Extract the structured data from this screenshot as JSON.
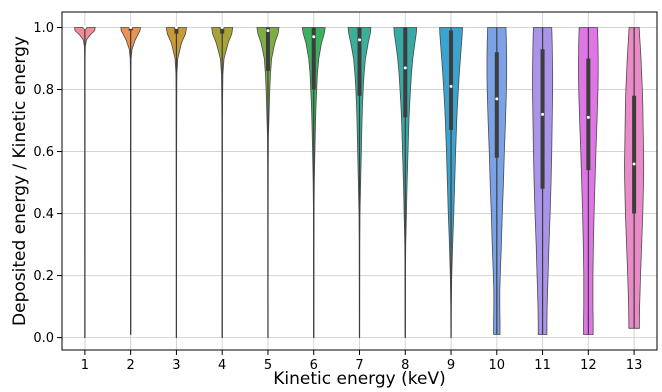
{
  "chart_data": {
    "type": "violin",
    "title": "",
    "xlabel": "Kinetic energy (keV)",
    "ylabel": "Deposited energy / Kinetic energy",
    "ylim": [
      -0.04,
      1.05
    ],
    "yticks": [
      "0.0",
      "0.2",
      "0.4",
      "0.6",
      "0.8",
      "1.0"
    ],
    "grid": true,
    "categories": [
      "1",
      "2",
      "3",
      "4",
      "5",
      "6",
      "7",
      "8",
      "9",
      "10",
      "11",
      "12",
      "13"
    ],
    "series": [
      {
        "category": "1",
        "color": "#f08b97",
        "min": 0.0,
        "q1": 0.995,
        "median": 1.0,
        "q3": 1.0,
        "max": 1.0,
        "profile": [
          [
            1.0,
            0.45
          ],
          [
            0.99,
            0.43
          ],
          [
            0.975,
            0.22
          ],
          [
            0.96,
            0.07
          ],
          [
            0.94,
            0.02
          ],
          [
            0.9,
            0.01
          ],
          [
            0.7,
            0.006
          ],
          [
            0.0,
            0.005
          ]
        ]
      },
      {
        "category": "2",
        "color": "#ea9352",
        "min": 0.01,
        "q1": 0.99,
        "median": 1.0,
        "q3": 1.0,
        "max": 1.0,
        "profile": [
          [
            1.0,
            0.43
          ],
          [
            0.99,
            0.41
          ],
          [
            0.96,
            0.2
          ],
          [
            0.93,
            0.06
          ],
          [
            0.9,
            0.02
          ],
          [
            0.85,
            0.01
          ],
          [
            0.6,
            0.006
          ],
          [
            0.01,
            0.005
          ]
        ]
      },
      {
        "category": "3",
        "color": "#c99a35",
        "min": 0.0,
        "q1": 0.98,
        "median": 1.0,
        "q3": 1.0,
        "max": 1.0,
        "profile": [
          [
            1.0,
            0.44
          ],
          [
            0.98,
            0.4
          ],
          [
            0.95,
            0.22
          ],
          [
            0.9,
            0.06
          ],
          [
            0.85,
            0.02
          ],
          [
            0.8,
            0.015
          ],
          [
            0.65,
            0.01
          ],
          [
            0.4,
            0.006
          ],
          [
            0.0,
            0.005
          ]
        ]
      },
      {
        "category": "4",
        "color": "#a8a238",
        "min": 0.0,
        "q1": 0.98,
        "median": 1.0,
        "q3": 1.0,
        "max": 1.0,
        "profile": [
          [
            1.0,
            0.46
          ],
          [
            0.98,
            0.42
          ],
          [
            0.95,
            0.26
          ],
          [
            0.9,
            0.08
          ],
          [
            0.85,
            0.03
          ],
          [
            0.78,
            0.02
          ],
          [
            0.7,
            0.012
          ],
          [
            0.4,
            0.006
          ],
          [
            0.0,
            0.005
          ]
        ]
      },
      {
        "category": "5",
        "color": "#7cae45",
        "min": 0.0,
        "q1": 0.86,
        "median": 0.99,
        "q3": 1.0,
        "max": 1.0,
        "profile": [
          [
            1.0,
            0.48
          ],
          [
            0.98,
            0.44
          ],
          [
            0.95,
            0.3
          ],
          [
            0.9,
            0.16
          ],
          [
            0.85,
            0.11
          ],
          [
            0.8,
            0.08
          ],
          [
            0.75,
            0.06
          ],
          [
            0.7,
            0.04
          ],
          [
            0.65,
            0.02
          ],
          [
            0.55,
            0.012
          ],
          [
            0.4,
            0.008
          ],
          [
            0.0,
            0.005
          ]
        ]
      },
      {
        "category": "6",
        "color": "#3cb060",
        "min": 0.0,
        "q1": 0.8,
        "median": 0.97,
        "q3": 1.0,
        "max": 1.0,
        "profile": [
          [
            1.0,
            0.5
          ],
          [
            0.98,
            0.46
          ],
          [
            0.95,
            0.34
          ],
          [
            0.9,
            0.22
          ],
          [
            0.85,
            0.16
          ],
          [
            0.8,
            0.13
          ],
          [
            0.75,
            0.1
          ],
          [
            0.7,
            0.08
          ],
          [
            0.6,
            0.05
          ],
          [
            0.5,
            0.025
          ],
          [
            0.4,
            0.012
          ],
          [
            0.2,
            0.006
          ],
          [
            0.0,
            0.005
          ]
        ]
      },
      {
        "category": "7",
        "color": "#3ab09a",
        "min": 0.0,
        "q1": 0.78,
        "median": 0.96,
        "q3": 1.0,
        "max": 1.0,
        "profile": [
          [
            1.0,
            0.5
          ],
          [
            0.98,
            0.47
          ],
          [
            0.95,
            0.38
          ],
          [
            0.9,
            0.26
          ],
          [
            0.85,
            0.2
          ],
          [
            0.8,
            0.16
          ],
          [
            0.75,
            0.13
          ],
          [
            0.7,
            0.11
          ],
          [
            0.6,
            0.08
          ],
          [
            0.5,
            0.05
          ],
          [
            0.4,
            0.02
          ],
          [
            0.3,
            0.01
          ],
          [
            0.0,
            0.005
          ]
        ]
      },
      {
        "category": "8",
        "color": "#37aaa8",
        "min": 0.0,
        "q1": 0.71,
        "median": 0.87,
        "q3": 1.0,
        "max": 1.0,
        "profile": [
          [
            1.0,
            0.5
          ],
          [
            0.98,
            0.48
          ],
          [
            0.95,
            0.42
          ],
          [
            0.9,
            0.33
          ],
          [
            0.85,
            0.27
          ],
          [
            0.8,
            0.23
          ],
          [
            0.75,
            0.19
          ],
          [
            0.7,
            0.16
          ],
          [
            0.6,
            0.12
          ],
          [
            0.5,
            0.08
          ],
          [
            0.4,
            0.05
          ],
          [
            0.3,
            0.02
          ],
          [
            0.2,
            0.01
          ],
          [
            0.0,
            0.005
          ]
        ]
      },
      {
        "category": "9",
        "color": "#3aa3cf",
        "min": 0.0,
        "q1": 0.67,
        "median": 0.81,
        "q3": 0.99,
        "max": 1.0,
        "profile": [
          [
            1.0,
            0.5
          ],
          [
            0.98,
            0.49
          ],
          [
            0.95,
            0.46
          ],
          [
            0.9,
            0.41
          ],
          [
            0.85,
            0.36
          ],
          [
            0.8,
            0.32
          ],
          [
            0.75,
            0.28
          ],
          [
            0.7,
            0.25
          ],
          [
            0.6,
            0.2
          ],
          [
            0.5,
            0.16
          ],
          [
            0.4,
            0.12
          ],
          [
            0.3,
            0.07
          ],
          [
            0.2,
            0.03
          ],
          [
            0.1,
            0.012
          ],
          [
            0.0,
            0.006
          ]
        ]
      },
      {
        "category": "10",
        "color": "#7ba2e6",
        "min": 0.01,
        "q1": 0.58,
        "median": 0.77,
        "q3": 0.92,
        "max": 1.0,
        "profile": [
          [
            1.0,
            0.4
          ],
          [
            0.95,
            0.42
          ],
          [
            0.9,
            0.43
          ],
          [
            0.85,
            0.43
          ],
          [
            0.8,
            0.42
          ],
          [
            0.75,
            0.4
          ],
          [
            0.7,
            0.38
          ],
          [
            0.6,
            0.33
          ],
          [
            0.5,
            0.29
          ],
          [
            0.4,
            0.24
          ],
          [
            0.3,
            0.2
          ],
          [
            0.2,
            0.15
          ],
          [
            0.15,
            0.13
          ],
          [
            0.1,
            0.13
          ],
          [
            0.05,
            0.14
          ],
          [
            0.01,
            0.14
          ]
        ]
      },
      {
        "category": "11",
        "color": "#a994ea",
        "min": 0.01,
        "q1": 0.48,
        "median": 0.72,
        "q3": 0.93,
        "max": 1.0,
        "profile": [
          [
            1.0,
            0.4
          ],
          [
            0.95,
            0.42
          ],
          [
            0.9,
            0.43
          ],
          [
            0.85,
            0.44
          ],
          [
            0.8,
            0.44
          ],
          [
            0.75,
            0.43
          ],
          [
            0.7,
            0.42
          ],
          [
            0.6,
            0.4
          ],
          [
            0.5,
            0.37
          ],
          [
            0.4,
            0.33
          ],
          [
            0.3,
            0.28
          ],
          [
            0.2,
            0.24
          ],
          [
            0.1,
            0.2
          ],
          [
            0.05,
            0.19
          ],
          [
            0.01,
            0.19
          ]
        ]
      },
      {
        "category": "12",
        "color": "#de76e6",
        "min": 0.01,
        "q1": 0.54,
        "median": 0.71,
        "q3": 0.9,
        "max": 1.0,
        "profile": [
          [
            1.0,
            0.4
          ],
          [
            0.95,
            0.42
          ],
          [
            0.9,
            0.43
          ],
          [
            0.85,
            0.43
          ],
          [
            0.8,
            0.42
          ],
          [
            0.75,
            0.4
          ],
          [
            0.7,
            0.38
          ],
          [
            0.6,
            0.33
          ],
          [
            0.5,
            0.29
          ],
          [
            0.4,
            0.25
          ],
          [
            0.3,
            0.22
          ],
          [
            0.2,
            0.2
          ],
          [
            0.1,
            0.2
          ],
          [
            0.05,
            0.21
          ],
          [
            0.01,
            0.21
          ]
        ]
      },
      {
        "category": "13",
        "color": "#ea8bc8",
        "min": 0.03,
        "q1": 0.4,
        "median": 0.56,
        "q3": 0.78,
        "max": 1.0,
        "profile": [
          [
            1.0,
            0.22
          ],
          [
            0.95,
            0.26
          ],
          [
            0.9,
            0.3
          ],
          [
            0.85,
            0.33
          ],
          [
            0.8,
            0.36
          ],
          [
            0.75,
            0.38
          ],
          [
            0.7,
            0.39
          ],
          [
            0.6,
            0.41
          ],
          [
            0.55,
            0.42
          ],
          [
            0.5,
            0.41
          ],
          [
            0.4,
            0.38
          ],
          [
            0.3,
            0.33
          ],
          [
            0.2,
            0.28
          ],
          [
            0.1,
            0.24
          ],
          [
            0.05,
            0.23
          ],
          [
            0.03,
            0.23
          ]
        ]
      }
    ]
  }
}
